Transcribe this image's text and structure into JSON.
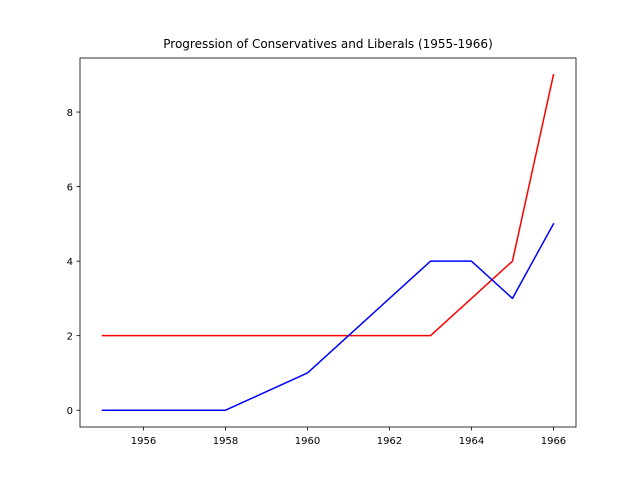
{
  "chart_data": {
    "type": "line",
    "title": "Progression of Conservatives and Liberals (1955-1966)",
    "xlabel": "",
    "ylabel": "",
    "x": [
      1955,
      1956,
      1957,
      1958,
      1959,
      1960,
      1961,
      1962,
      1963,
      1964,
      1965,
      1966
    ],
    "xlim": [
      1954.45,
      1966.55
    ],
    "ylim": [
      -0.45,
      9.45
    ],
    "xticks": [
      1956,
      1958,
      1960,
      1962,
      1964,
      1966
    ],
    "yticks": [
      0,
      2,
      4,
      6,
      8
    ],
    "grid": false,
    "legend": "none",
    "series": [
      {
        "name": "Conservatives",
        "color": "#ff0000",
        "values": [
          2,
          2,
          2,
          2,
          2,
          2,
          2,
          2,
          2,
          3,
          4,
          9
        ]
      },
      {
        "name": "Liberals",
        "color": "#0000ff",
        "values": [
          0,
          0,
          0,
          0,
          0.5,
          1,
          2,
          3,
          4,
          4,
          3,
          5
        ]
      }
    ]
  }
}
